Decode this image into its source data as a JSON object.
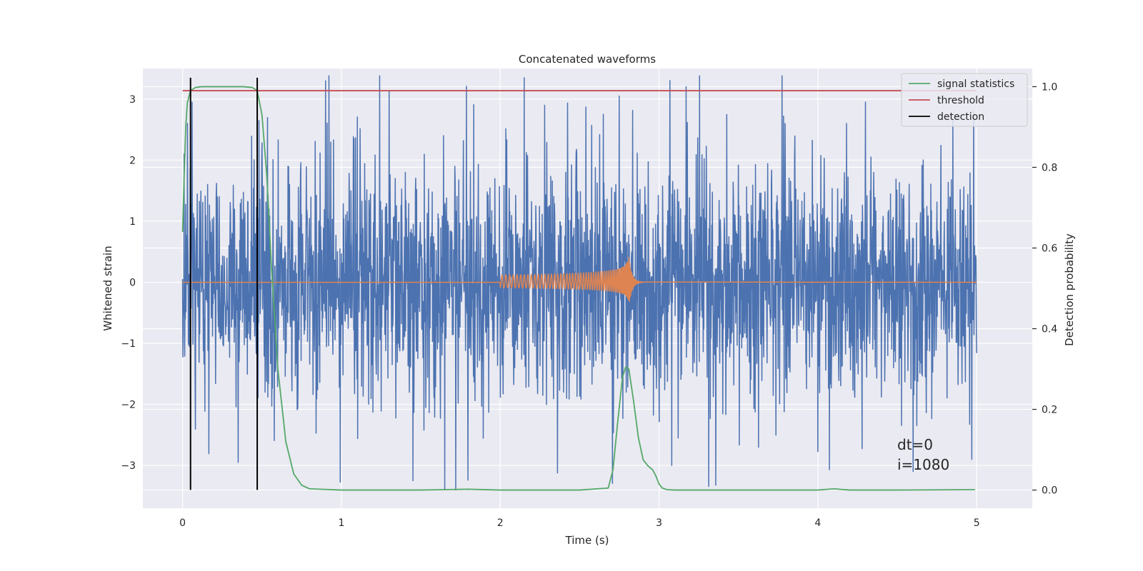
{
  "chart_data": {
    "type": "line",
    "title": "Concatenated waveforms",
    "xlabel": "Time (s)",
    "ylabel": "Whitened strain",
    "y2label": "Detection probability",
    "xlim": [
      -0.25,
      5.35
    ],
    "ylim": [
      -3.7,
      3.5
    ],
    "y2lim": [
      -0.045,
      1.045
    ],
    "xticks": [
      0,
      1,
      2,
      3,
      4,
      5
    ],
    "xtick_labels": [
      "0",
      "1",
      "2",
      "3",
      "4",
      "5"
    ],
    "yticks": [
      -3,
      -2,
      -1,
      0,
      1,
      2,
      3
    ],
    "ytick_labels": [
      "−3",
      "−2",
      "−1",
      "0",
      "1",
      "2",
      "3"
    ],
    "y2ticks": [
      0.0,
      0.2,
      0.4,
      0.6,
      0.8,
      1.0
    ],
    "y2tick_labels": [
      "0.0",
      "0.2",
      "0.4",
      "0.6",
      "0.8",
      "1.0"
    ],
    "grid": true,
    "legend_position": "top-right",
    "colors": {
      "background": "#eaeaf2",
      "grid": "#ffffff",
      "strain": "#4c72b0",
      "injection": "#dd8452",
      "signal_statistics": "#55a868",
      "threshold": "#c44e52",
      "detection": "#000000"
    },
    "series": [
      {
        "name": "",
        "axis": "left",
        "kind": "noise",
        "color": "#4c72b0",
        "x_range": [
          0,
          5
        ],
        "spike_peaks": [
          [
            0.01,
            2.1
          ],
          [
            0.03,
            2.6
          ],
          [
            0.06,
            2.95
          ],
          [
            0.9,
            3.3
          ],
          [
            1.08,
            2.35
          ],
          [
            1.65,
            -3.4
          ],
          [
            1.72,
            -3.4
          ],
          [
            2.15,
            3.35
          ],
          [
            2.28,
            2.9
          ],
          [
            2.65,
            2.75
          ],
          [
            2.75,
            3.05
          ],
          [
            3.17,
            3.2
          ],
          [
            3.08,
            -3.0
          ],
          [
            4.18,
            2.6
          ],
          [
            4.98,
            2.8
          ],
          [
            4.6,
            -3.1
          ],
          [
            1.45,
            -3.25
          ],
          [
            0.35,
            -2.95
          ],
          [
            4.3,
            2.95
          ],
          [
            4.85,
            2.65
          ]
        ]
      },
      {
        "name": "",
        "axis": "left",
        "kind": "chirp",
        "color": "#dd8452",
        "x_start": 2.0,
        "x_merger": 2.81,
        "x_end": 2.9,
        "amplitude_start": 0.12,
        "amplitude_peak_top": 0.55,
        "amplitude_peak_bottom": -0.42
      },
      {
        "name": "signal statistics",
        "axis": "right",
        "color": "#55a868",
        "x": [
          0.0,
          0.01,
          0.02,
          0.03,
          0.05,
          0.08,
          0.12,
          0.2,
          0.3,
          0.38,
          0.44,
          0.47,
          0.5,
          0.53,
          0.56,
          0.6,
          0.65,
          0.7,
          0.75,
          0.8,
          1.0,
          1.5,
          1.8,
          2.0,
          2.5,
          2.68,
          2.71,
          2.74,
          2.77,
          2.79,
          2.81,
          2.84,
          2.87,
          2.9,
          2.93,
          2.96,
          2.98,
          3.0,
          3.02,
          3.05,
          3.1,
          3.5,
          4.0,
          4.1,
          4.2,
          4.5,
          4.99
        ],
        "values": [
          0.64,
          0.78,
          0.9,
          0.96,
          0.99,
          0.998,
          1.0,
          1.0,
          1.0,
          1.0,
          0.998,
          0.99,
          0.93,
          0.78,
          0.55,
          0.3,
          0.12,
          0.04,
          0.012,
          0.003,
          0.0,
          0.0,
          0.002,
          0.0,
          0.0,
          0.005,
          0.05,
          0.17,
          0.28,
          0.305,
          0.3,
          0.22,
          0.13,
          0.075,
          0.06,
          0.05,
          0.035,
          0.015,
          0.005,
          0.001,
          0.0,
          0.0,
          0.0,
          0.003,
          0.0,
          0.0,
          0.001
        ]
      },
      {
        "name": "threshold",
        "axis": "right",
        "color": "#c44e52",
        "x": [
          0,
          5
        ],
        "values": [
          0.99,
          0.99
        ]
      },
      {
        "name": "detection",
        "axis": "left",
        "color": "#000000",
        "vlines": [
          0.05,
          0.47
        ],
        "y_range": [
          -3.4,
          3.35
        ]
      }
    ],
    "legend": [
      "signal statistics",
      "threshold",
      "detection"
    ],
    "annotations": [
      "dt=0",
      "i=1080"
    ]
  }
}
